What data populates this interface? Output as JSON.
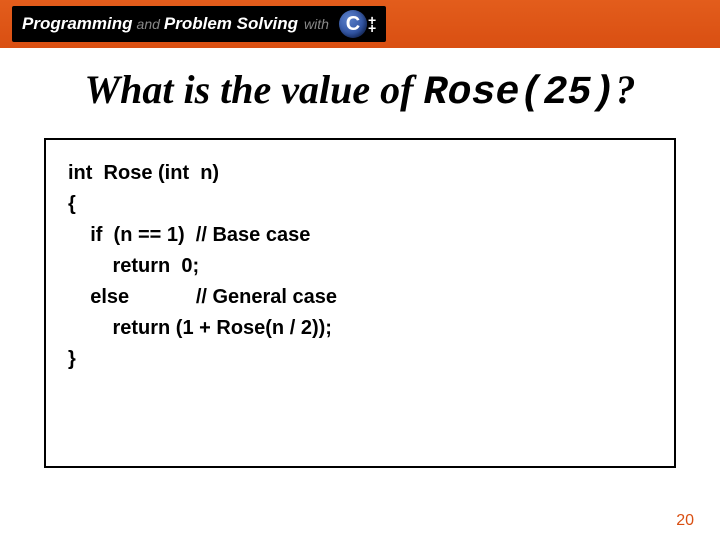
{
  "header": {
    "word1": "Programming",
    "and": "and",
    "word2": "Problem Solving",
    "with": "with",
    "cpp_letter": "C",
    "cpp_plus": "++"
  },
  "title": {
    "prefix": "What is the value of ",
    "mono": "Rose(25)",
    "suffix": "?"
  },
  "code": {
    "line1": "int  Rose (int  n)",
    "line2": "{",
    "line3": "    if  (n == 1)  // Base case",
    "line4": "        return  0;",
    "line5": "    else            // General case",
    "line6": "        return (1 + Rose(n / 2));",
    "line7": "}"
  },
  "page_number": "20",
  "colors": {
    "orange": "#d94f12",
    "border": "#000000"
  }
}
